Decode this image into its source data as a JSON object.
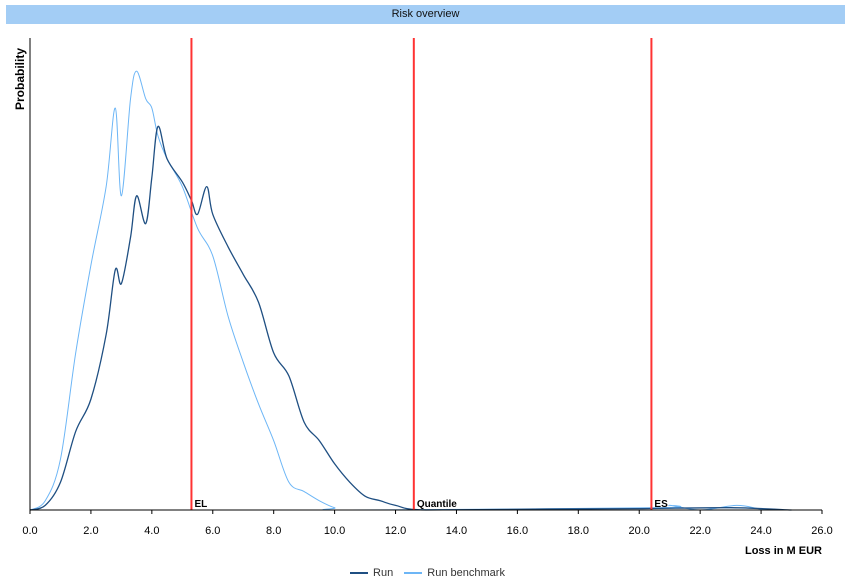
{
  "chart_data": {
    "type": "line",
    "title": "Risk overview",
    "xlabel": "Loss in M EUR",
    "ylabel": "Probability",
    "xlim": [
      0,
      26
    ],
    "ylim": [
      0,
      1
    ],
    "x_ticks": [
      "0.0",
      "2.0",
      "4.0",
      "6.0",
      "8.0",
      "10.0",
      "12.0",
      "14.0",
      "16.0",
      "18.0",
      "20.0",
      "22.0",
      "24.0",
      "26.0"
    ],
    "grid": false,
    "legend_position": "bottom",
    "colors": {
      "run": "#1f4f82",
      "benchmark": "#6db6f6",
      "marker": "#ff3333",
      "title_bar": "#a3cdf5"
    },
    "series": [
      {
        "name": "Run",
        "points": [
          [
            0,
            0
          ],
          [
            0.5,
            0.01
          ],
          [
            1.0,
            0.06
          ],
          [
            1.5,
            0.17
          ],
          [
            2.0,
            0.24
          ],
          [
            2.5,
            0.38
          ],
          [
            2.8,
            0.52
          ],
          [
            3.0,
            0.49
          ],
          [
            3.3,
            0.59
          ],
          [
            3.5,
            0.68
          ],
          [
            3.8,
            0.62
          ],
          [
            4.0,
            0.72
          ],
          [
            4.2,
            0.83
          ],
          [
            4.5,
            0.76
          ],
          [
            5.0,
            0.71
          ],
          [
            5.3,
            0.67
          ],
          [
            5.5,
            0.64
          ],
          [
            5.8,
            0.7
          ],
          [
            6.0,
            0.64
          ],
          [
            6.5,
            0.57
          ],
          [
            7.0,
            0.51
          ],
          [
            7.5,
            0.45
          ],
          [
            8.0,
            0.34
          ],
          [
            8.5,
            0.29
          ],
          [
            9.0,
            0.19
          ],
          [
            9.5,
            0.15
          ],
          [
            10.0,
            0.1
          ],
          [
            10.5,
            0.06
          ],
          [
            11.0,
            0.03
          ],
          [
            11.5,
            0.02
          ],
          [
            12.0,
            0.01
          ],
          [
            13.0,
            0
          ],
          [
            17.0,
            0.002
          ],
          [
            20.0,
            0.003
          ],
          [
            23.0,
            0.005
          ],
          [
            25.0,
            0
          ]
        ]
      },
      {
        "name": "Run benchmark",
        "points": [
          [
            0,
            0
          ],
          [
            0.5,
            0.02
          ],
          [
            1.0,
            0.11
          ],
          [
            1.5,
            0.34
          ],
          [
            2.0,
            0.53
          ],
          [
            2.5,
            0.7
          ],
          [
            2.8,
            0.87
          ],
          [
            3.0,
            0.68
          ],
          [
            3.3,
            0.89
          ],
          [
            3.5,
            0.95
          ],
          [
            3.8,
            0.89
          ],
          [
            4.0,
            0.87
          ],
          [
            4.2,
            0.81
          ],
          [
            4.5,
            0.76
          ],
          [
            5.0,
            0.7
          ],
          [
            5.5,
            0.61
          ],
          [
            6.0,
            0.55
          ],
          [
            6.5,
            0.42
          ],
          [
            7.0,
            0.32
          ],
          [
            7.5,
            0.23
          ],
          [
            8.0,
            0.15
          ],
          [
            8.5,
            0.06
          ],
          [
            9.0,
            0.04
          ],
          [
            9.5,
            0.02
          ],
          [
            10.0,
            0.005
          ],
          [
            10.5,
            0
          ],
          [
            20.5,
            0.005
          ],
          [
            21.0,
            0.01
          ],
          [
            22.0,
            0
          ],
          [
            23.2,
            0.01
          ],
          [
            24.0,
            0.002
          ],
          [
            24.7,
            0
          ]
        ]
      }
    ],
    "markers": [
      {
        "label": "EL",
        "x": 5.3
      },
      {
        "label": "Quantile",
        "x": 12.6
      },
      {
        "label": "ES",
        "x": 20.4
      }
    ]
  }
}
